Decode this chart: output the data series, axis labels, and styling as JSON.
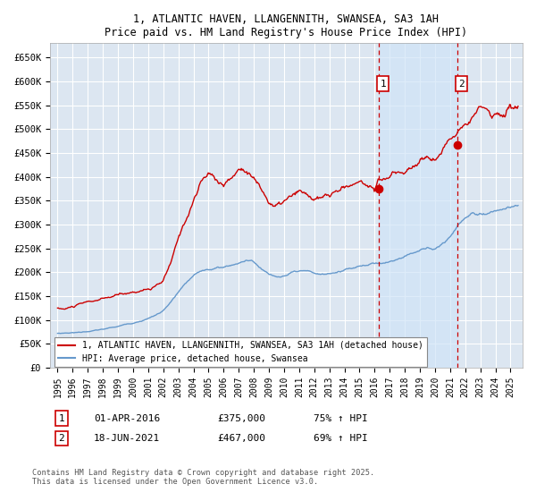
{
  "title_line1": "1, ATLANTIC HAVEN, LLANGENNITH, SWANSEA, SA3 1AH",
  "title_line2": "Price paid vs. HM Land Registry's House Price Index (HPI)",
  "background_color": "#ffffff",
  "plot_bg_color": "#dce6f1",
  "shade_color": "#d0e4f7",
  "grid_color": "#ffffff",
  "red_line_color": "#cc0000",
  "blue_line_color": "#6699cc",
  "marker1_date_x": 2016.25,
  "marker2_date_x": 2021.46,
  "marker1_label": "1",
  "marker2_label": "2",
  "marker1_price": 375000,
  "marker2_price": 467000,
  "legend_red": "1, ATLANTIC HAVEN, LLANGENNITH, SWANSEA, SA3 1AH (detached house)",
  "legend_blue": "HPI: Average price, detached house, Swansea",
  "footer": "Contains HM Land Registry data © Crown copyright and database right 2025.\nThis data is licensed under the Open Government Licence v3.0.",
  "ylim": [
    0,
    680000
  ],
  "xlim_start": 1994.5,
  "xlim_end": 2025.8,
  "yticks": [
    0,
    50000,
    100000,
    150000,
    200000,
    250000,
    300000,
    350000,
    400000,
    450000,
    500000,
    550000,
    600000,
    650000
  ],
  "ytick_labels": [
    "£0",
    "£50K",
    "£100K",
    "£150K",
    "£200K",
    "£250K",
    "£300K",
    "£350K",
    "£400K",
    "£450K",
    "£500K",
    "£550K",
    "£600K",
    "£650K"
  ],
  "xticks": [
    1995,
    1996,
    1997,
    1998,
    1999,
    2000,
    2001,
    2002,
    2003,
    2004,
    2005,
    2006,
    2007,
    2008,
    2009,
    2010,
    2011,
    2012,
    2013,
    2014,
    2015,
    2016,
    2017,
    2018,
    2019,
    2020,
    2021,
    2022,
    2023,
    2024,
    2025
  ]
}
